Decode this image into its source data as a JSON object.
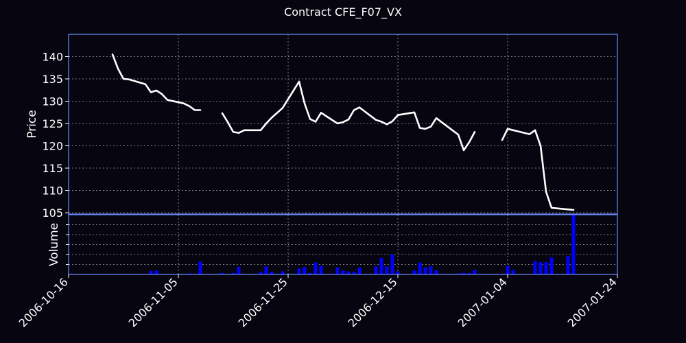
{
  "chart_data": {
    "title": "Contract CFE_F07_VX",
    "type": "line",
    "colors": {
      "background": "#07050f",
      "frame": "#6a8cff",
      "price_line": "#ffffff",
      "volume_bars": "#0000ff",
      "grid": "#c8c8c8",
      "text": "#ffffff"
    },
    "grid": true,
    "x_axis": {
      "type": "date",
      "range": [
        "2006-10-16",
        "2007-01-24"
      ],
      "ticks": [
        "2006-10-16",
        "2006-11-05",
        "2006-11-25",
        "2006-12-15",
        "2007-01-04",
        "2007-01-24"
      ]
    },
    "price_panel": {
      "ylabel": "Price",
      "ylim": [
        104.7,
        145
      ],
      "yticks": [
        105,
        110,
        115,
        120,
        125,
        130,
        135,
        140
      ],
      "segments": [
        [
          [
            "2006-10-24",
            140.5
          ],
          [
            "2006-10-25",
            137.3
          ],
          [
            "2006-10-26",
            135.0
          ],
          [
            "2006-10-27",
            134.9
          ],
          [
            "2006-10-30",
            133.8
          ],
          [
            "2006-10-31",
            132.0
          ],
          [
            "2006-11-01",
            132.4
          ],
          [
            "2006-11-02",
            131.6
          ],
          [
            "2006-11-03",
            130.3
          ],
          [
            "2006-11-06",
            129.5
          ],
          [
            "2006-11-07",
            128.9
          ],
          [
            "2006-11-08",
            128.0
          ],
          [
            "2006-11-09",
            128.0
          ]
        ],
        [
          [
            "2006-11-13",
            127.3
          ],
          [
            "2006-11-14",
            125.3
          ],
          [
            "2006-11-15",
            123.1
          ],
          [
            "2006-11-16",
            122.9
          ],
          [
            "2006-11-17",
            123.5
          ],
          [
            "2006-11-20",
            123.5
          ],
          [
            "2006-11-21",
            125.0
          ],
          [
            "2006-11-22",
            126.3
          ],
          [
            "2006-11-24",
            128.5
          ],
          [
            "2006-11-27",
            134.4
          ],
          [
            "2006-11-28",
            129.5
          ],
          [
            "2006-11-29",
            126.0
          ],
          [
            "2006-11-30",
            125.4
          ],
          [
            "2006-12-01",
            127.4
          ],
          [
            "2006-12-04",
            125.0
          ],
          [
            "2006-12-05",
            125.3
          ],
          [
            "2006-12-06",
            125.9
          ],
          [
            "2006-12-07",
            128.0
          ],
          [
            "2006-12-08",
            128.6
          ],
          [
            "2006-12-11",
            125.8
          ],
          [
            "2006-12-12",
            125.4
          ],
          [
            "2006-12-13",
            124.8
          ],
          [
            "2006-12-14",
            125.5
          ],
          [
            "2006-12-15",
            126.9
          ],
          [
            "2006-12-18",
            127.5
          ],
          [
            "2006-12-19",
            124.0
          ],
          [
            "2006-12-20",
            123.8
          ],
          [
            "2006-12-21",
            124.3
          ],
          [
            "2006-12-22",
            126.2
          ],
          [
            "2006-12-26",
            122.5
          ],
          [
            "2006-12-27",
            119.0
          ],
          [
            "2006-12-28",
            120.8
          ],
          [
            "2006-12-29",
            123.1
          ]
        ],
        [
          [
            "2007-01-03",
            121.3
          ],
          [
            "2007-01-04",
            123.8
          ],
          [
            "2007-01-08",
            122.6
          ],
          [
            "2007-01-09",
            123.5
          ],
          [
            "2007-01-10",
            120.0
          ],
          [
            "2007-01-11",
            109.7
          ],
          [
            "2007-01-12",
            106.1
          ],
          [
            "2007-01-16",
            105.6
          ]
        ]
      ]
    },
    "volume_panel": {
      "ylabel": "Volume",
      "ylim": [
        0,
        12
      ],
      "bars": [
        [
          "2006-10-26",
          0.1
        ],
        [
          "2006-10-31",
          0.7
        ],
        [
          "2006-11-01",
          0.8
        ],
        [
          "2006-11-07",
          0.2
        ],
        [
          "2006-11-09",
          2.6
        ],
        [
          "2006-11-13",
          0.3
        ],
        [
          "2006-11-15",
          0.3
        ],
        [
          "2006-11-16",
          1.5
        ],
        [
          "2006-11-20",
          0.5
        ],
        [
          "2006-11-21",
          1.6
        ],
        [
          "2006-11-22",
          0.5
        ],
        [
          "2006-11-24",
          0.6
        ],
        [
          "2006-11-27",
          1.2
        ],
        [
          "2006-11-28",
          1.5
        ],
        [
          "2006-11-29",
          0.3
        ],
        [
          "2006-11-30",
          2.4
        ],
        [
          "2006-12-01",
          1.7
        ],
        [
          "2006-12-04",
          1.4
        ],
        [
          "2006-12-05",
          0.8
        ],
        [
          "2006-12-06",
          0.6
        ],
        [
          "2006-12-07",
          0.5
        ],
        [
          "2006-12-08",
          1.4
        ],
        [
          "2006-12-11",
          1.6
        ],
        [
          "2006-12-12",
          3.3
        ],
        [
          "2006-12-13",
          1.6
        ],
        [
          "2006-12-14",
          4.0
        ],
        [
          "2006-12-15",
          0.6
        ],
        [
          "2006-12-18",
          0.8
        ],
        [
          "2006-12-19",
          2.4
        ],
        [
          "2006-12-20",
          1.4
        ],
        [
          "2006-12-21",
          1.6
        ],
        [
          "2006-12-22",
          0.8
        ],
        [
          "2006-12-26",
          0.2
        ],
        [
          "2006-12-27",
          0.3
        ],
        [
          "2006-12-28",
          0.3
        ],
        [
          "2006-12-29",
          0.9
        ],
        [
          "2007-01-04",
          1.7
        ],
        [
          "2007-01-05",
          0.9
        ],
        [
          "2007-01-09",
          2.7
        ],
        [
          "2007-01-10",
          2.5
        ],
        [
          "2007-01-11",
          2.5
        ],
        [
          "2007-01-12",
          3.4
        ],
        [
          "2007-01-15",
          3.7
        ],
        [
          "2007-01-16",
          12.0
        ]
      ]
    }
  }
}
